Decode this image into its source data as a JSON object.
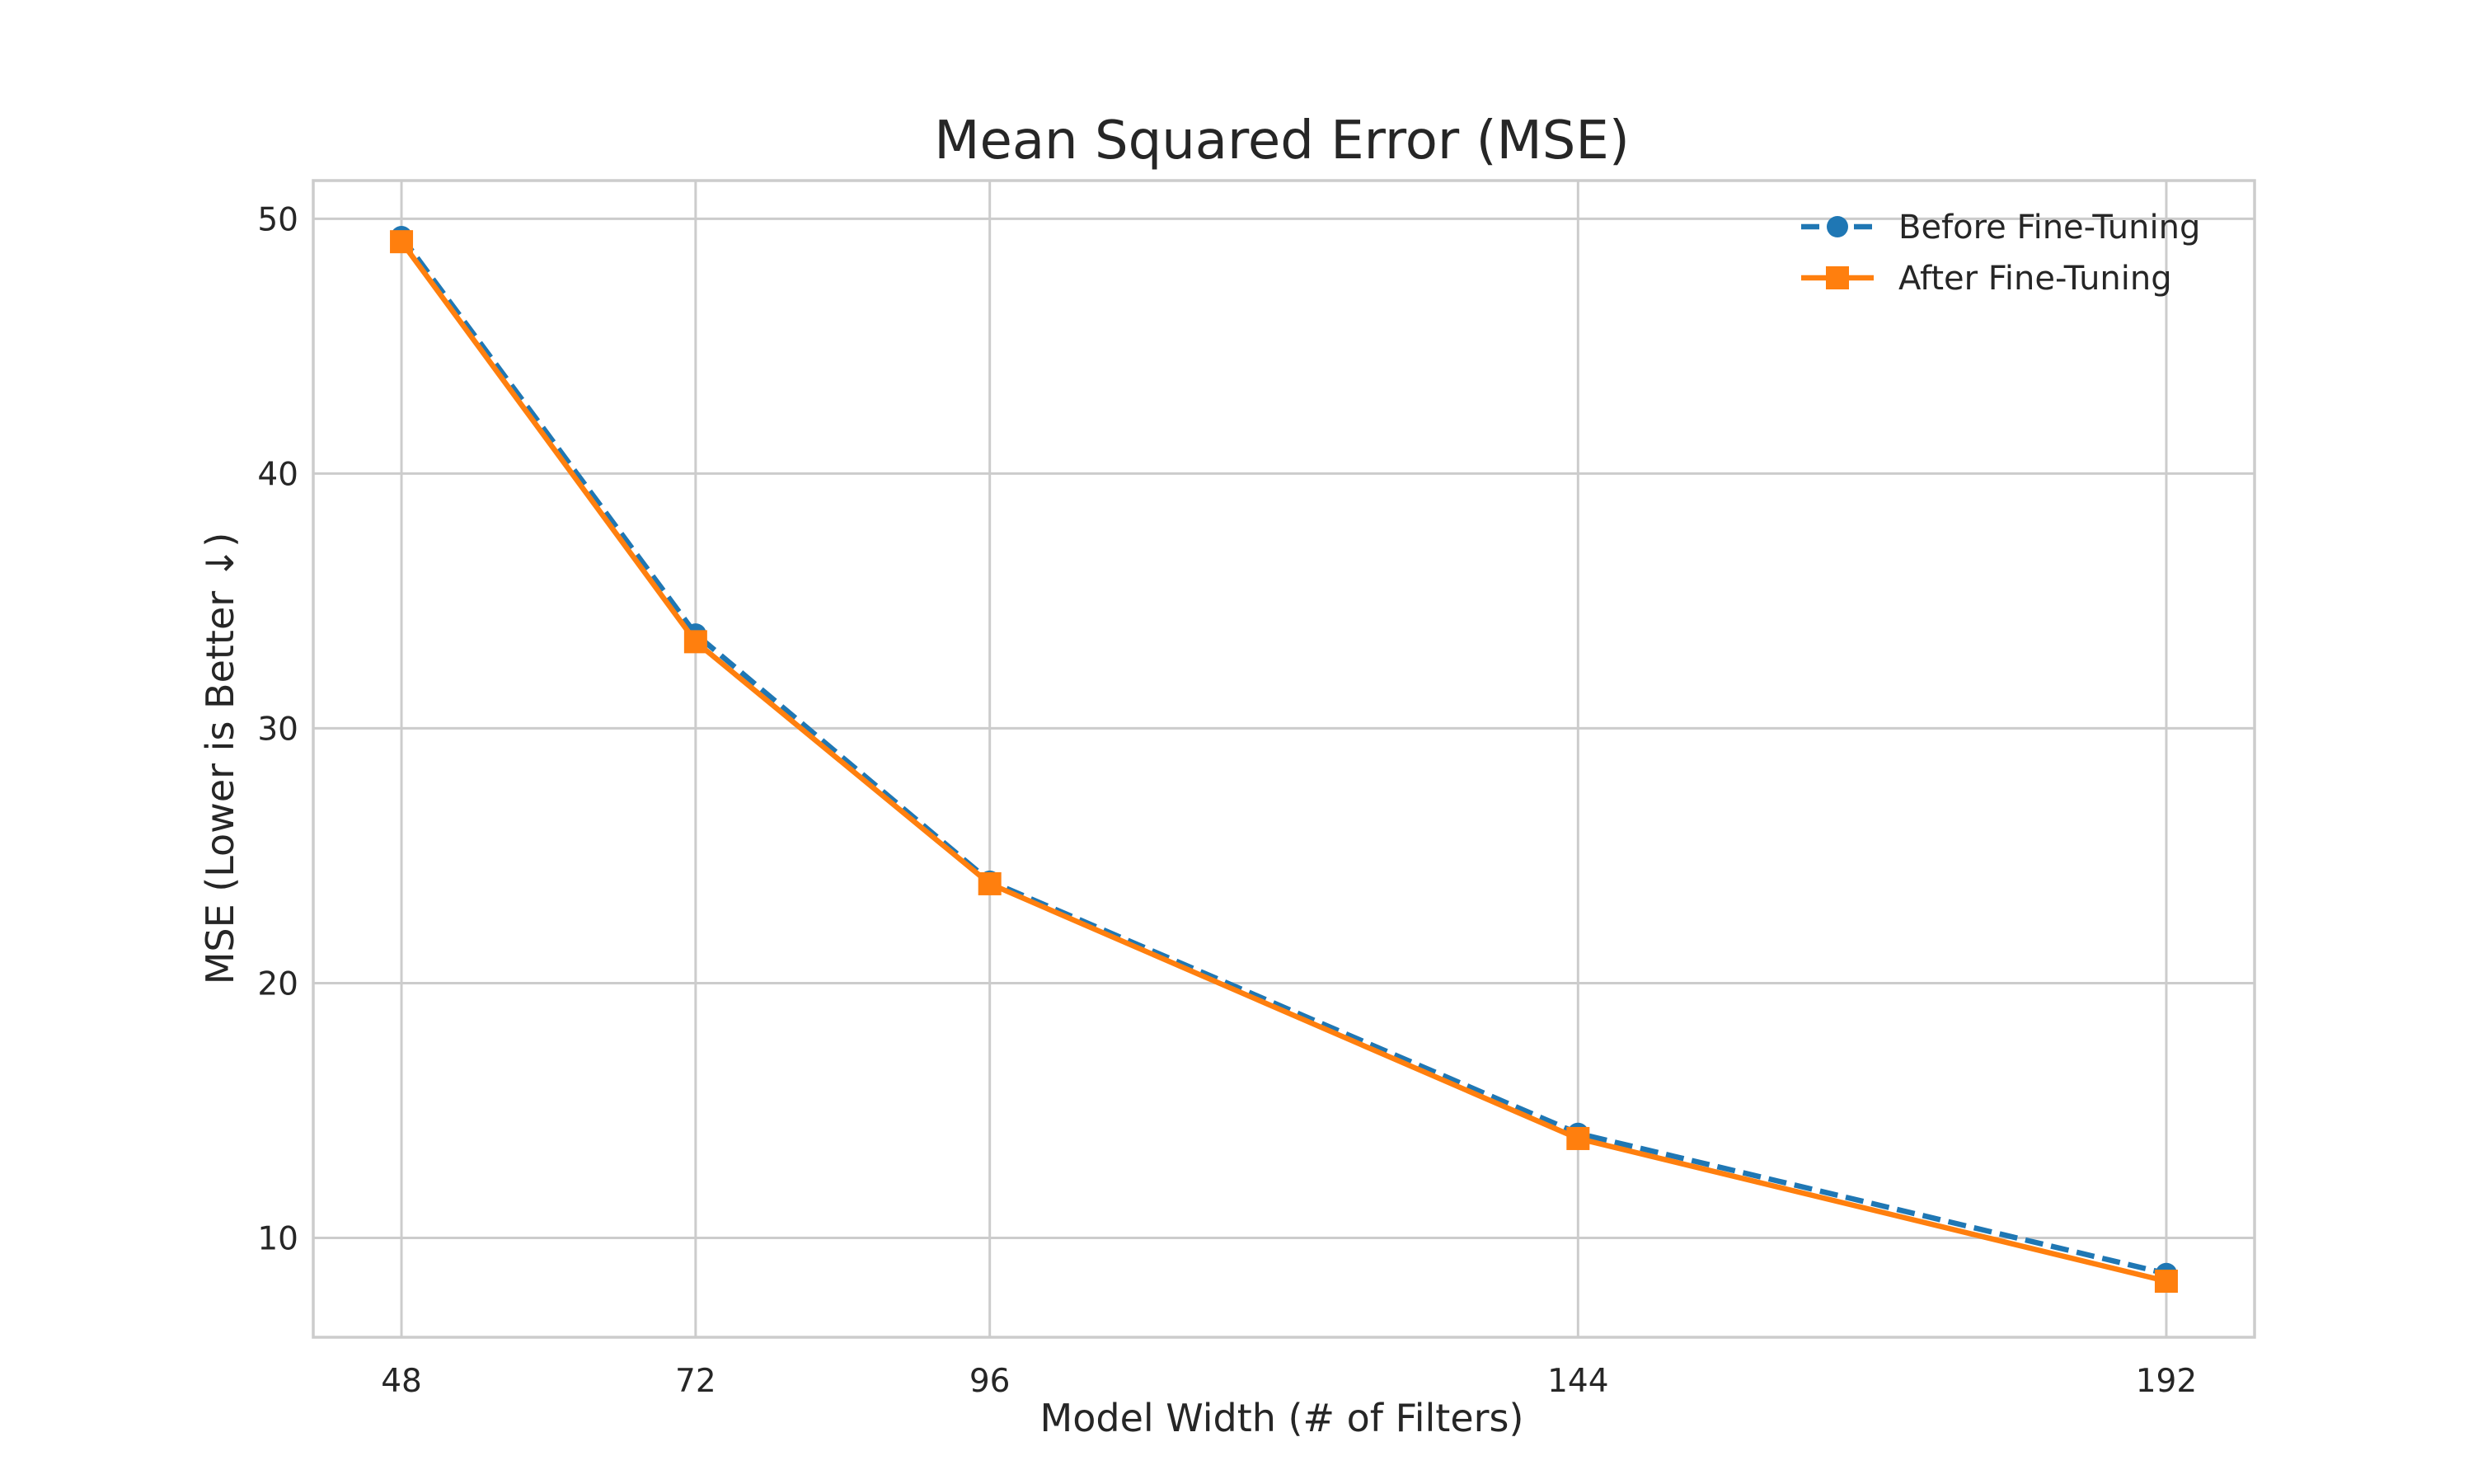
{
  "chart_data": {
    "type": "line",
    "title": "Mean Squared Error (MSE)",
    "xlabel": "Model Width (# of Filters)",
    "ylabel": "MSE (Lower is Better ↓)",
    "x": [
      48,
      72,
      96,
      144,
      192
    ],
    "x_tick_labels": [
      "48",
      "72",
      "96",
      "144",
      "192"
    ],
    "y_ticks": [
      10,
      20,
      30,
      40,
      50
    ],
    "y_tick_labels": [
      "10",
      "20",
      "30",
      "40",
      "50"
    ],
    "xlim": [
      40.8,
      199.2
    ],
    "ylim": [
      6.1,
      51.5
    ],
    "grid": true,
    "legend_position": "top-right",
    "series": [
      {
        "name": "Before Fine-Tuning",
        "values": [
          49.3,
          33.7,
          24.0,
          14.1,
          8.6
        ],
        "color": "#1f77b4",
        "line_style": "dashed",
        "marker": "circle"
      },
      {
        "name": "After Fine-Tuning",
        "values": [
          49.1,
          33.4,
          23.9,
          13.9,
          8.3
        ],
        "color": "#ff7f0e",
        "line_style": "solid",
        "marker": "square"
      }
    ]
  }
}
